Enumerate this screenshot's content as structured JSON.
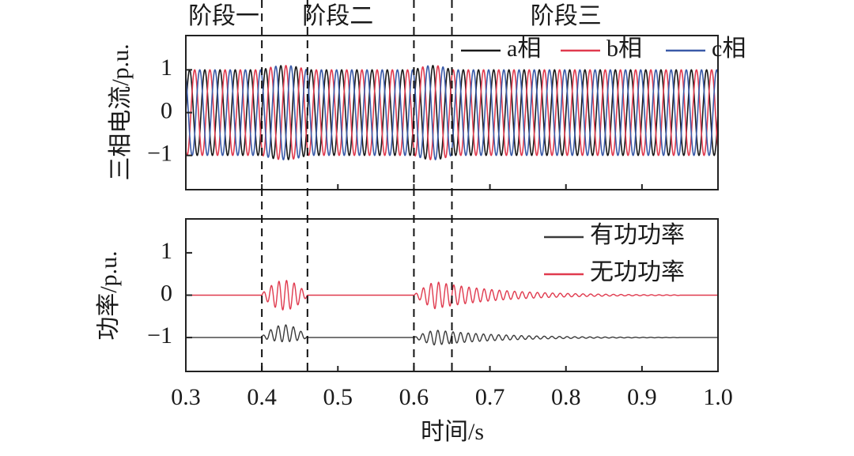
{
  "chart_data": [
    {
      "type": "line",
      "title": "",
      "ylabel": "三相电流/p.u.",
      "xlabel": "",
      "xlim": [
        0.3,
        1.0
      ],
      "ylim": [
        -1.8,
        1.8
      ],
      "yticks": [
        1,
        0,
        -1
      ],
      "ytick_labels": [
        "1",
        "0",
        "−1"
      ],
      "grid": false,
      "legend_position": "top-right",
      "stages": [
        {
          "label": "阶段一",
          "start": 0.3,
          "end": 0.4
        },
        {
          "label": "阶段二",
          "start": 0.4,
          "end": 0.6
        },
        {
          "label": "阶段三",
          "start": 0.6,
          "end": 1.0
        }
      ],
      "event_lines": [
        0.4,
        0.46,
        0.6,
        0.65
      ],
      "series": [
        {
          "name": "a相",
          "color": "#1a1a1a",
          "amplitude": 1.0,
          "phase_deg": 0
        },
        {
          "name": "b相",
          "color": "#e03a4e",
          "amplitude": 1.0,
          "phase_deg": -120
        },
        {
          "name": "c相",
          "color": "#3a5aa8",
          "amplitude": 1.0,
          "phase_deg": 120
        }
      ],
      "frequency_hz": 50,
      "transient_windows": [
        {
          "start": 0.4,
          "end": 0.46,
          "peak_amplitude": 1.1
        },
        {
          "start": 0.6,
          "end": 0.65,
          "peak_amplitude": 1.1
        }
      ]
    },
    {
      "type": "line",
      "title": "",
      "ylabel": "功率/p.u.",
      "xlabel": "时间/s",
      "xlim": [
        0.3,
        1.0
      ],
      "ylim": [
        -1.8,
        1.8
      ],
      "xticks": [
        0.3,
        0.4,
        0.5,
        0.6,
        0.7,
        0.8,
        0.9,
        1.0
      ],
      "xtick_labels": [
        "0.3",
        "0.4",
        "0.5",
        "0.6",
        "0.7",
        "0.8",
        "0.9",
        "1.0"
      ],
      "yticks": [
        1,
        0,
        -1
      ],
      "ytick_labels": [
        "1",
        "0",
        "−1"
      ],
      "grid": false,
      "legend_position": "top-right",
      "series": [
        {
          "name": "有功功率",
          "color": "#3a3a3a",
          "baseline": -1.0,
          "oscillations": [
            {
              "start": 0.4,
              "end": 0.46,
              "amplitude": 0.2
            },
            {
              "start": 0.6,
              "end": 0.95,
              "amplitude": 0.25
            }
          ]
        },
        {
          "name": "无功功率",
          "color": "#e03a4e",
          "baseline": 0.0,
          "oscillations": [
            {
              "start": 0.4,
              "end": 0.46,
              "amplitude": 0.35
            },
            {
              "start": 0.6,
              "end": 0.95,
              "amplitude": 0.45
            }
          ]
        }
      ]
    }
  ]
}
